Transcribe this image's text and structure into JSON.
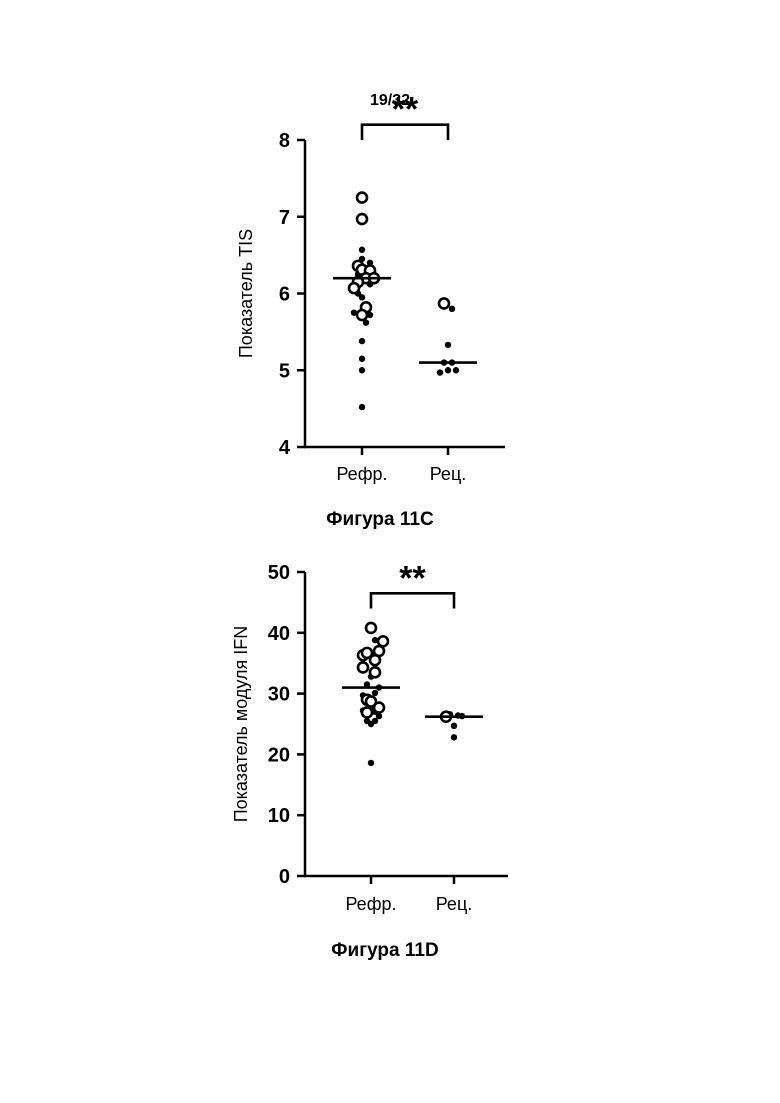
{
  "page_number": "19/32",
  "figures": [
    {
      "caption": "Фигура 11C"
    },
    {
      "caption": "Фигура 11D"
    }
  ],
  "chart_data": [
    {
      "type": "scatter",
      "title": "",
      "ylabel": "Показатель TIS",
      "xlabel": "",
      "ylim": [
        4,
        8
      ],
      "yticks": [
        4,
        5,
        6,
        7,
        8
      ],
      "categories": [
        "Рефр.",
        "Рец."
      ],
      "significance": "**",
      "bracket_height": 8.2,
      "bracket_drop": 0.2,
      "medians": [
        6.2,
        5.1
      ],
      "groups": [
        {
          "category": "Рефр.",
          "open": [
            {
              "jitter": 0,
              "y": 7.25
            },
            {
              "jitter": 0,
              "y": 6.97
            },
            {
              "jitter": -1,
              "y": 6.36
            },
            {
              "jitter": 0,
              "y": 6.31
            },
            {
              "jitter": 2,
              "y": 6.3
            },
            {
              "jitter": 1,
              "y": 6.2
            },
            {
              "jitter": -1,
              "y": 6.15
            },
            {
              "jitter": -2,
              "y": 6.07
            },
            {
              "jitter": 3,
              "y": 6.2
            },
            {
              "jitter": 1,
              "y": 5.82
            },
            {
              "jitter": 0,
              "y": 5.72
            }
          ],
          "filled": [
            {
              "jitter": 0,
              "y": 6.57
            },
            {
              "jitter": 0,
              "y": 6.45
            },
            {
              "jitter": 2,
              "y": 6.4
            },
            {
              "jitter": -1,
              "y": 6.25
            },
            {
              "jitter": 2,
              "y": 6.12
            },
            {
              "jitter": -1,
              "y": 6.0
            },
            {
              "jitter": 0,
              "y": 5.95
            },
            {
              "jitter": 2,
              "y": 5.72
            },
            {
              "jitter": 1,
              "y": 5.62
            },
            {
              "jitter": -2,
              "y": 5.75
            },
            {
              "jitter": 0,
              "y": 5.38
            },
            {
              "jitter": 0,
              "y": 5.15
            },
            {
              "jitter": 0,
              "y": 5.0
            },
            {
              "jitter": 0,
              "y": 4.52
            }
          ]
        },
        {
          "category": "Рец.",
          "open": [
            {
              "jitter": -1,
              "y": 5.87
            }
          ],
          "filled": [
            {
              "jitter": 1,
              "y": 5.8
            },
            {
              "jitter": 0,
              "y": 5.33
            },
            {
              "jitter": -1,
              "y": 5.1
            },
            {
              "jitter": 1,
              "y": 5.1
            },
            {
              "jitter": -2,
              "y": 4.97
            },
            {
              "jitter": 0,
              "y": 5.0
            },
            {
              "jitter": 2,
              "y": 5.0
            }
          ]
        }
      ]
    },
    {
      "type": "scatter",
      "title": "",
      "ylabel": "Показатель модуля IFN",
      "xlabel": "",
      "ylim": [
        0,
        50
      ],
      "yticks": [
        0,
        10,
        20,
        30,
        40,
        50
      ],
      "categories": [
        "Рефр.",
        "Рец."
      ],
      "significance": "**",
      "bracket_height": 46.5,
      "bracket_drop": 2.5,
      "medians": [
        31,
        26.2
      ],
      "groups": [
        {
          "category": "Рефр.",
          "open": [
            {
              "jitter": 0,
              "y": 40.8
            },
            {
              "jitter": 3,
              "y": 38.6
            },
            {
              "jitter": -2,
              "y": 36.3
            },
            {
              "jitter": 2,
              "y": 37.0
            },
            {
              "jitter": -1,
              "y": 36.7
            },
            {
              "jitter": 1,
              "y": 35.5
            },
            {
              "jitter": -2,
              "y": 34.3
            },
            {
              "jitter": 1,
              "y": 33.5
            },
            {
              "jitter": -1,
              "y": 29.0
            },
            {
              "jitter": 0,
              "y": 28.7
            },
            {
              "jitter": 2,
              "y": 27.7
            },
            {
              "jitter": -1,
              "y": 26.9
            }
          ],
          "filled": [
            {
              "jitter": 1,
              "y": 38.8
            },
            {
              "jitter": 0,
              "y": 32.8
            },
            {
              "jitter": -1,
              "y": 31.5
            },
            {
              "jitter": 2,
              "y": 31.0
            },
            {
              "jitter": 1,
              "y": 30.1
            },
            {
              "jitter": -2,
              "y": 29.7
            },
            {
              "jitter": 0,
              "y": 27.5
            },
            {
              "jitter": -2,
              "y": 27.2
            },
            {
              "jitter": 1,
              "y": 27.0
            },
            {
              "jitter": 2,
              "y": 26.3
            },
            {
              "jitter": 1,
              "y": 25.5
            },
            {
              "jitter": 0,
              "y": 25.0
            },
            {
              "jitter": -1,
              "y": 25.5
            },
            {
              "jitter": 0,
              "y": 18.6
            }
          ]
        },
        {
          "category": "Рец.",
          "open": [
            {
              "jitter": -2,
              "y": 26.2
            }
          ],
          "filled": [
            {
              "jitter": -1,
              "y": 26.6
            },
            {
              "jitter": 1,
              "y": 26.4
            },
            {
              "jitter": 2,
              "y": 26.3
            },
            {
              "jitter": 0,
              "y": 24.7
            },
            {
              "jitter": 0,
              "y": 22.8
            }
          ]
        }
      ]
    }
  ]
}
